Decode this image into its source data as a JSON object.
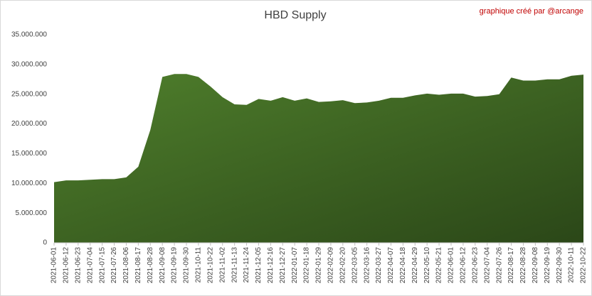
{
  "chart_data": {
    "type": "area",
    "title": "HBD Supply",
    "annotation": "graphique créé par @arcange",
    "categories": [
      "2021-06-01",
      "2021-06-12",
      "2021-06-23",
      "2021-07-04",
      "2021-07-15",
      "2021-07-26",
      "2021-08-06",
      "2021-08-17",
      "2021-08-28",
      "2021-09-08",
      "2021-09-19",
      "2021-09-30",
      "2021-10-11",
      "2021-10-22",
      "2021-11-02",
      "2021-11-13",
      "2021-11-24",
      "2021-12-05",
      "2021-12-16",
      "2021-12-27",
      "2022-01-07",
      "2022-01-18",
      "2022-01-29",
      "2022-02-09",
      "2022-02-20",
      "2022-03-05",
      "2022-03-16",
      "2022-03-27",
      "2022-04-07",
      "2022-04-18",
      "2022-04-29",
      "2022-05-10",
      "2022-05-21",
      "2022-06-01",
      "2022-06-12",
      "2022-06-23",
      "2022-07-04",
      "2022-07-26",
      "2022-08-17",
      "2022-08-28",
      "2022-09-08",
      "2022-09-19",
      "2022-09-30",
      "2022-10-11",
      "2022-10-22"
    ],
    "values": [
      10200000,
      10500000,
      10500000,
      10600000,
      10700000,
      10700000,
      11000000,
      12800000,
      19000000,
      27900000,
      28400000,
      28400000,
      27900000,
      26300000,
      24500000,
      23300000,
      23200000,
      24200000,
      23900000,
      24500000,
      23900000,
      24300000,
      23700000,
      23800000,
      24000000,
      23500000,
      23600000,
      23900000,
      24400000,
      24400000,
      24800000,
      25100000,
      24900000,
      25100000,
      25100000,
      24600000,
      24700000,
      25000000,
      27800000,
      27300000,
      27300000,
      27500000,
      27500000,
      28100000,
      28300000
    ],
    "color": "#4f7f2c",
    "ylim": [
      0,
      35000000
    ],
    "yticks": [
      0,
      {
        "value": 5000000,
        "label": "5.000.000"
      },
      {
        "value": 10000000,
        "label": "10.000.000"
      },
      {
        "value": 15000000,
        "label": "15.000.000"
      },
      {
        "value": 20000000,
        "label": "20.000.000"
      },
      {
        "value": 25000000,
        "label": "25.000.000"
      },
      {
        "value": 30000000,
        "label": "30.000.000"
      },
      {
        "value": 35000000,
        "label": "35.000.000"
      }
    ],
    "grid": false
  }
}
